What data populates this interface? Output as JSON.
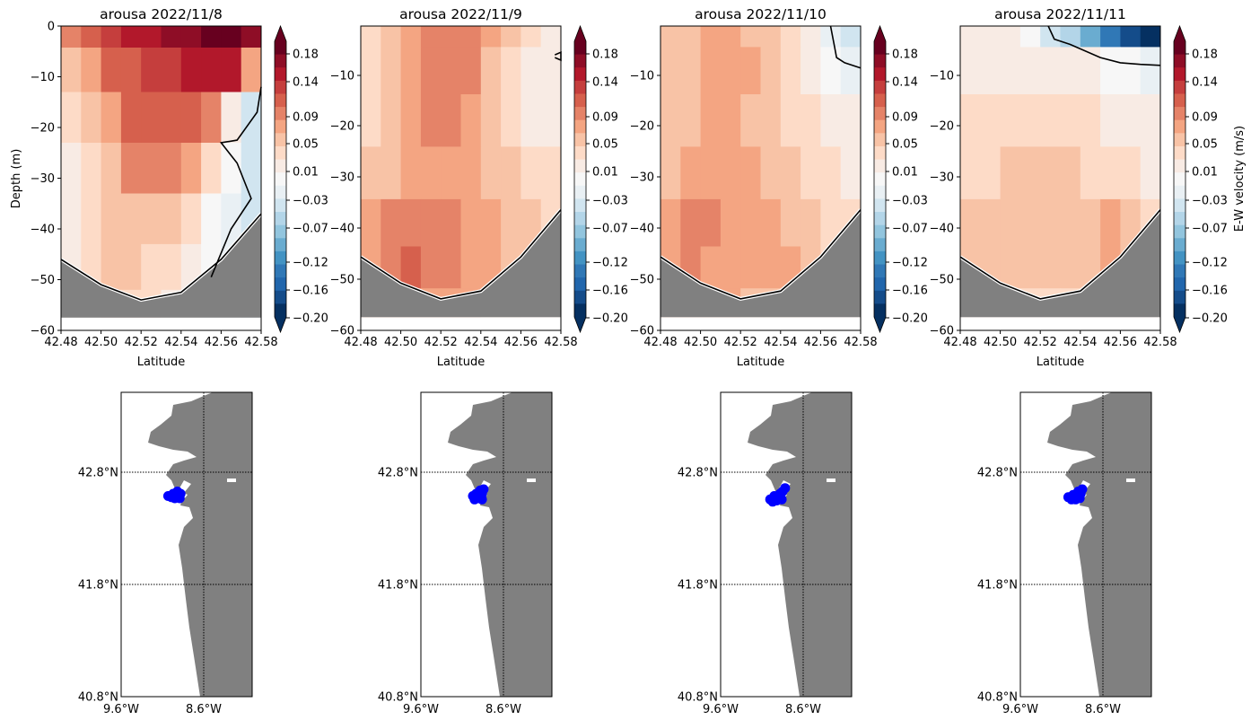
{
  "figure": {
    "colorbar_label": "E-W velocity (m/s)",
    "colorbar_ticks": [
      "0.18",
      "0.14",
      "0.09",
      "0.05",
      "0.01",
      "−0.03",
      "−0.07",
      "−0.12",
      "−0.16",
      "−0.20"
    ],
    "colormap": [
      "#67001f",
      "#8e0d26",
      "#b2182b",
      "#c53e3d",
      "#d6604d",
      "#e58368",
      "#f4a582",
      "#f8c3a6",
      "#fddbc7",
      "#f8ebe4",
      "#f7f7f7",
      "#e9f0f4",
      "#d1e5f0",
      "#b3d5e8",
      "#92c5de",
      "#6aacd0",
      "#4393c3",
      "#3078b6",
      "#2166ac",
      "#144c8a",
      "#053061"
    ],
    "bathymetry_color": "#808080",
    "land_color": "#808080",
    "particle_color": "#0000ff"
  },
  "chart_data": [
    {
      "type": "heatmap",
      "title": "arousa 2022/11/8",
      "xlabel": "Latitude",
      "ylabel": "Depth (m)",
      "xlim": [
        42.48,
        42.58
      ],
      "ylim": [
        -60,
        0
      ],
      "x_ticks": [
        "42.48",
        "42.50",
        "42.52",
        "42.54",
        "42.56",
        "42.58"
      ],
      "y_ticks": [
        "0",
        "−10",
        "−20",
        "−30",
        "−40",
        "−50",
        "−60"
      ],
      "z_levels": [
        -0.2,
        0.2
      ],
      "bottom_depth": {
        "lat": [
          42.48,
          42.5,
          42.52,
          42.54,
          42.56,
          42.58
        ],
        "depth": [
          -46,
          -51,
          -54,
          -52.5,
          -46,
          -37
        ]
      },
      "zero_contour": [
        [
          42.555,
          -49.5
        ],
        [
          42.565,
          -40
        ],
        [
          42.575,
          -34
        ],
        [
          42.568,
          -27
        ],
        [
          42.56,
          -23
        ],
        [
          42.568,
          -22.5
        ],
        [
          42.578,
          -17
        ],
        [
          42.58,
          -12
        ]
      ],
      "velocity_field": [
        {
          "depth": -0.5,
          "values": [
            0.1,
            0.12,
            0.14,
            0.16,
            0.17,
            0.18,
            0.19,
            0.2,
            0.2,
            0.19
          ]
        },
        {
          "depth": -8,
          "values": [
            0.06,
            0.09,
            0.12,
            0.13,
            0.14,
            0.15,
            0.16,
            0.17,
            0.16,
            0.08
          ]
        },
        {
          "depth": -18,
          "values": [
            0.04,
            0.06,
            0.09,
            0.12,
            0.13,
            0.13,
            0.12,
            0.1,
            0.02,
            -0.03
          ]
        },
        {
          "depth": -28,
          "values": [
            0.03,
            0.05,
            0.07,
            0.1,
            0.11,
            0.1,
            0.08,
            0.05,
            0.0,
            -0.03
          ]
        },
        {
          "depth": -38,
          "values": [
            0.03,
            0.04,
            0.06,
            0.07,
            0.07,
            0.06,
            0.04,
            0.01,
            -0.02,
            -0.03
          ]
        },
        {
          "depth": -48,
          "values": [
            0.02,
            0.04,
            0.06,
            0.06,
            0.05,
            0.04,
            0.02,
            0.0,
            -0.02,
            -0.03
          ]
        },
        {
          "depth": -56,
          "values": [
            0.02,
            0.03,
            0.04,
            0.04,
            0.04,
            0.03,
            0.02,
            0.0,
            -0.02,
            -0.03
          ]
        }
      ]
    },
    {
      "type": "heatmap",
      "title": "arousa 2022/11/9",
      "xlabel": "Latitude",
      "ylabel": "",
      "xlim": [
        42.48,
        42.58
      ],
      "ylim": [
        -60,
        -2
      ],
      "x_ticks": [
        "42.48",
        "42.50",
        "42.52",
        "42.54",
        "42.56",
        "42.58"
      ],
      "y_ticks": [
        "−10",
        "−20",
        "−30",
        "−40",
        "−50",
        "−60"
      ],
      "z_levels": [
        -0.2,
        0.2
      ],
      "bottom_depth": {
        "lat": [
          42.48,
          42.5,
          42.52,
          42.54,
          42.56,
          42.58
        ],
        "depth": [
          -46,
          -51,
          -54,
          -52.5,
          -46,
          -37
        ]
      },
      "zero_contour": [
        [
          42.577,
          -8
        ],
        [
          42.58,
          -8.5
        ],
        [
          42.58,
          -7
        ],
        [
          42.577,
          -7.5
        ]
      ],
      "velocity_field": [
        {
          "depth": -2,
          "values": [
            0.05,
            0.07,
            0.09,
            0.1,
            0.11,
            0.1,
            0.08,
            0.06,
            0.04,
            0.02
          ]
        },
        {
          "depth": -10,
          "values": [
            0.05,
            0.07,
            0.09,
            0.1,
            0.11,
            0.1,
            0.07,
            0.05,
            0.03,
            0.02
          ]
        },
        {
          "depth": -20,
          "values": [
            0.05,
            0.07,
            0.08,
            0.1,
            0.1,
            0.09,
            0.07,
            0.05,
            0.03,
            0.02
          ]
        },
        {
          "depth": -30,
          "values": [
            0.06,
            0.07,
            0.08,
            0.09,
            0.09,
            0.08,
            0.07,
            0.06,
            0.05,
            0.04
          ]
        },
        {
          "depth": -40,
          "values": [
            0.08,
            0.1,
            0.11,
            0.11,
            0.1,
            0.09,
            0.08,
            0.07,
            0.06,
            0.05
          ]
        },
        {
          "depth": -48,
          "values": [
            0.09,
            0.11,
            0.12,
            0.11,
            0.1,
            0.09,
            0.08,
            0.07,
            0.06,
            0.05
          ]
        },
        {
          "depth": -56,
          "values": [
            0.08,
            0.09,
            0.09,
            0.09,
            0.08,
            0.08,
            0.07,
            0.06,
            0.05,
            0.05
          ]
        }
      ]
    },
    {
      "type": "heatmap",
      "title": "arousa 2022/11/10",
      "xlabel": "Latitude",
      "ylabel": "",
      "xlim": [
        42.48,
        42.58
      ],
      "ylim": [
        -60,
        -2
      ],
      "x_ticks": [
        "42.48",
        "42.50",
        "42.52",
        "42.54",
        "42.56",
        "42.58"
      ],
      "y_ticks": [
        "−10",
        "−20",
        "−30",
        "−40",
        "−50",
        "−60"
      ],
      "z_levels": [
        -0.2,
        0.2
      ],
      "bottom_depth": {
        "lat": [
          42.48,
          42.5,
          42.52,
          42.54,
          42.56,
          42.58
        ],
        "depth": [
          -46,
          -51,
          -54,
          -52.5,
          -46,
          -37
        ]
      },
      "zero_contour": [
        [
          42.565,
          -2
        ],
        [
          42.567,
          -6
        ],
        [
          42.568,
          -8
        ],
        [
          42.572,
          -9
        ],
        [
          42.58,
          -10
        ]
      ],
      "velocity_field": [
        {
          "depth": -2,
          "values": [
            0.06,
            0.07,
            0.08,
            0.08,
            0.07,
            0.06,
            0.04,
            0.02,
            -0.02,
            -0.04
          ]
        },
        {
          "depth": -10,
          "values": [
            0.06,
            0.07,
            0.09,
            0.09,
            0.08,
            0.07,
            0.05,
            0.03,
            0.0,
            -0.02
          ]
        },
        {
          "depth": -20,
          "values": [
            0.06,
            0.07,
            0.08,
            0.08,
            0.07,
            0.06,
            0.05,
            0.04,
            0.03,
            0.02
          ]
        },
        {
          "depth": -30,
          "values": [
            0.07,
            0.08,
            0.08,
            0.08,
            0.08,
            0.07,
            0.06,
            0.05,
            0.04,
            0.03
          ]
        },
        {
          "depth": -40,
          "values": [
            0.09,
            0.1,
            0.1,
            0.09,
            0.08,
            0.08,
            0.07,
            0.06,
            0.05,
            0.04
          ]
        },
        {
          "depth": -48,
          "values": [
            0.09,
            0.1,
            0.09,
            0.09,
            0.08,
            0.08,
            0.08,
            0.07,
            0.05,
            0.04
          ]
        },
        {
          "depth": -56,
          "values": [
            0.08,
            0.08,
            0.08,
            0.08,
            0.07,
            0.07,
            0.06,
            0.05,
            0.05,
            0.04
          ]
        }
      ]
    },
    {
      "type": "heatmap",
      "title": "arousa 2022/11/11",
      "xlabel": "Latitude",
      "ylabel": "",
      "xlim": [
        42.48,
        42.58
      ],
      "ylim": [
        -60,
        -2
      ],
      "x_ticks": [
        "42.48",
        "42.50",
        "42.52",
        "42.54",
        "42.56",
        "42.58"
      ],
      "y_ticks": [
        "−10",
        "−20",
        "−30",
        "−40",
        "−50",
        "−60"
      ],
      "z_levels": [
        -0.2,
        0.2
      ],
      "bottom_depth": {
        "lat": [
          42.48,
          42.5,
          42.52,
          42.54,
          42.56,
          42.58
        ],
        "depth": [
          -46,
          -51,
          -54,
          -52.5,
          -46,
          -37
        ]
      },
      "zero_contour": [
        [
          42.524,
          -2
        ],
        [
          42.527,
          -4.5
        ],
        [
          42.535,
          -5.5
        ],
        [
          42.55,
          -8
        ],
        [
          42.56,
          -9
        ],
        [
          42.57,
          -9.3
        ],
        [
          42.58,
          -9.5
        ]
      ],
      "velocity_field": [
        {
          "depth": -2,
          "values": [
            0.02,
            0.02,
            0.02,
            0.01,
            -0.03,
            -0.06,
            -0.1,
            -0.13,
            -0.17,
            -0.19
          ]
        },
        {
          "depth": -10,
          "values": [
            0.03,
            0.03,
            0.03,
            0.03,
            0.02,
            0.02,
            0.02,
            0.01,
            0.0,
            -0.01
          ]
        },
        {
          "depth": -20,
          "values": [
            0.04,
            0.04,
            0.04,
            0.04,
            0.04,
            0.04,
            0.04,
            0.03,
            0.03,
            0.02
          ]
        },
        {
          "depth": -30,
          "values": [
            0.05,
            0.05,
            0.06,
            0.07,
            0.07,
            0.06,
            0.05,
            0.05,
            0.04,
            0.03
          ]
        },
        {
          "depth": -40,
          "values": [
            0.06,
            0.07,
            0.07,
            0.07,
            0.06,
            0.06,
            0.07,
            0.08,
            0.07,
            0.04
          ]
        },
        {
          "depth": -48,
          "values": [
            0.06,
            0.07,
            0.07,
            0.06,
            0.06,
            0.06,
            0.07,
            0.08,
            0.06,
            0.04
          ]
        },
        {
          "depth": -56,
          "values": [
            0.05,
            0.05,
            0.05,
            0.05,
            0.05,
            0.05,
            0.05,
            0.05,
            0.05,
            0.04
          ]
        }
      ]
    },
    {
      "type": "scatter",
      "title": "",
      "panel": "map",
      "x_ticks": [
        "9.6°W",
        "8.6°W"
      ],
      "y_ticks": [
        "42.8°N",
        "41.8°N",
        "40.8°N"
      ],
      "xlim": [
        -9.6,
        -8.6
      ],
      "ylim": [
        40.8,
        43.5
      ],
      "points": [
        {
          "lon": -9.03,
          "lat": 42.58
        },
        {
          "lon": -8.97,
          "lat": 42.6
        },
        {
          "lon": -8.95,
          "lat": 42.56
        },
        {
          "lon": -8.92,
          "lat": 42.62
        },
        {
          "lon": -8.91,
          "lat": 42.58
        },
        {
          "lon": -8.88,
          "lat": 42.6
        },
        {
          "lon": -8.94,
          "lat": 42.6
        },
        {
          "lon": -8.89,
          "lat": 42.56
        },
        {
          "lon": -8.99,
          "lat": 42.57
        }
      ]
    },
    {
      "type": "scatter",
      "title": "",
      "panel": "map",
      "x_ticks": [
        "9.6°W",
        "8.6°W"
      ],
      "y_ticks": [
        "42.8°N",
        "41.8°N",
        "40.8°N"
      ],
      "xlim": [
        -9.6,
        -8.6
      ],
      "ylim": [
        40.8,
        43.5
      ],
      "points": [
        {
          "lon": -8.97,
          "lat": 42.58
        },
        {
          "lon": -8.93,
          "lat": 42.6
        },
        {
          "lon": -8.91,
          "lat": 42.56
        },
        {
          "lon": -8.88,
          "lat": 42.63
        },
        {
          "lon": -8.86,
          "lat": 42.6
        },
        {
          "lon": -8.84,
          "lat": 42.64
        },
        {
          "lon": -8.9,
          "lat": 42.59
        },
        {
          "lon": -8.86,
          "lat": 42.55
        },
        {
          "lon": -8.95,
          "lat": 42.55
        }
      ]
    },
    {
      "type": "scatter",
      "title": "",
      "panel": "map",
      "x_ticks": [
        "9.6°W",
        "8.6°W"
      ],
      "y_ticks": [
        "42.8°N",
        "41.8°N",
        "40.8°N"
      ],
      "xlim": [
        -9.6,
        -8.6
      ],
      "ylim": [
        40.8,
        43.5
      ],
      "points": [
        {
          "lon": -9.0,
          "lat": 42.55
        },
        {
          "lon": -8.95,
          "lat": 42.58
        },
        {
          "lon": -8.92,
          "lat": 42.54
        },
        {
          "lon": -8.88,
          "lat": 42.6
        },
        {
          "lon": -8.85,
          "lat": 42.62
        },
        {
          "lon": -8.82,
          "lat": 42.65
        },
        {
          "lon": -8.9,
          "lat": 42.57
        },
        {
          "lon": -8.86,
          "lat": 42.55
        },
        {
          "lon": -8.97,
          "lat": 42.53
        }
      ]
    },
    {
      "type": "scatter",
      "title": "",
      "panel": "map",
      "x_ticks": [
        "9.6°W",
        "8.6°W"
      ],
      "y_ticks": [
        "42.8°N",
        "41.8°N",
        "40.8°N"
      ],
      "xlim": [
        -9.6,
        -8.6
      ],
      "ylim": [
        40.8,
        43.5
      ],
      "points": [
        {
          "lon": -9.02,
          "lat": 42.57
        },
        {
          "lon": -8.96,
          "lat": 42.59
        },
        {
          "lon": -8.93,
          "lat": 42.55
        },
        {
          "lon": -8.9,
          "lat": 42.62
        },
        {
          "lon": -8.87,
          "lat": 42.6
        },
        {
          "lon": -8.85,
          "lat": 42.64
        },
        {
          "lon": -8.92,
          "lat": 42.58
        },
        {
          "lon": -8.88,
          "lat": 42.56
        },
        {
          "lon": -8.98,
          "lat": 42.55
        }
      ]
    }
  ]
}
